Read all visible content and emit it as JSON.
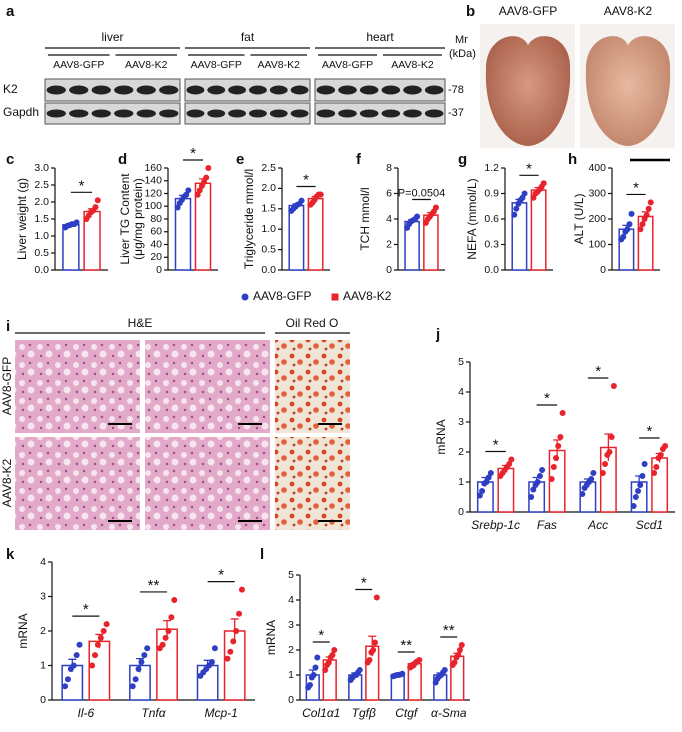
{
  "blot": {
    "panel": "a",
    "tissues": [
      "liver",
      "fat",
      "heart"
    ],
    "groups": [
      "AAV8-GFP",
      "AAV8-K2"
    ],
    "proteins": [
      "K2",
      "Gapdh"
    ],
    "marker_header": [
      "Mr",
      "(kDa)"
    ],
    "markers": [
      "-78",
      "-37"
    ]
  },
  "photos": {
    "panel": "b",
    "labels": [
      "AAV8-GFP",
      "AAV8-K2"
    ]
  },
  "histology": {
    "panel": "i",
    "stains": [
      "H&E",
      "Oil Red O"
    ],
    "rows": [
      "AAV8-GFP",
      "AAV8-K2"
    ]
  },
  "legend": {
    "series": [
      {
        "name": "AAV8-GFP",
        "color": "#2e3fc4",
        "marker": "circle"
      },
      {
        "name": "AAV8-K2",
        "color": "#e8232b",
        "marker": "square"
      }
    ]
  },
  "chart_data": [
    {
      "type": "bar",
      "panel": "c",
      "ylabel": "Liver weight (g)",
      "ylim": [
        0,
        3
      ],
      "yticks": [
        {
          "value": 0,
          "label": "0.0"
        },
        {
          "value": 0.5,
          "label": "0.5"
        },
        {
          "value": 1,
          "label": "1.0"
        },
        {
          "value": 1.5,
          "label": "1.5"
        },
        {
          "value": 2,
          "label": "2.0"
        },
        {
          "value": 2.5,
          "label": "2.5"
        },
        {
          "value": 3,
          "label": "3.0"
        }
      ],
      "significance": [
        "*"
      ],
      "series": [
        {
          "values": [
            1.33
          ],
          "errors": [
            0.03
          ],
          "points": [
            [
              1.25,
              1.3,
              1.32,
              1.35,
              1.35,
              1.4
            ]
          ]
        },
        {
          "values": [
            1.72
          ],
          "errors": [
            0.08
          ],
          "points": [
            [
              1.5,
              1.6,
              1.7,
              1.75,
              1.85,
              2.05
            ]
          ]
        }
      ]
    },
    {
      "type": "bar",
      "panel": "d",
      "ylabel": [
        "Liver TG Content",
        "(μg/mg protein)"
      ],
      "ylim": [
        0,
        160
      ],
      "yticks": [
        0,
        20,
        40,
        60,
        80,
        100,
        120,
        140,
        160
      ],
      "significance": [
        "*"
      ],
      "series": [
        {
          "values": [
            112
          ],
          "errors": [
            5
          ],
          "points": [
            [
              98,
              105,
              110,
              115,
              118,
              125
            ]
          ]
        },
        {
          "values": [
            136
          ],
          "errors": [
            7
          ],
          "points": [
            [
              118,
              125,
              132,
              138,
              145,
              160
            ]
          ]
        }
      ]
    },
    {
      "type": "bar",
      "panel": "e",
      "ylabel": "Triglyceride mmol/l",
      "ylim": [
        0,
        2.5
      ],
      "yticks": [
        {
          "value": 0,
          "label": "0.0"
        },
        {
          "value": 0.5,
          "label": "0.5"
        },
        {
          "value": 1,
          "label": "1.0"
        },
        {
          "value": 1.5,
          "label": "1.5"
        },
        {
          "value": 2,
          "label": "2.0"
        },
        {
          "value": 2.5,
          "label": "2.5"
        }
      ],
      "significance": [
        "*"
      ],
      "series": [
        {
          "values": [
            1.58
          ],
          "errors": [
            0.04
          ],
          "points": [
            [
              1.45,
              1.5,
              1.55,
              1.6,
              1.62,
              1.7
            ]
          ]
        },
        {
          "values": [
            1.75
          ],
          "errors": [
            0.05
          ],
          "points": [
            [
              1.6,
              1.65,
              1.72,
              1.8,
              1.85,
              1.85
            ]
          ]
        }
      ]
    },
    {
      "type": "bar",
      "panel": "f",
      "ylabel": "TCH mmol/l",
      "ylim": [
        0,
        8
      ],
      "yticks": [
        0,
        2,
        4,
        6,
        8
      ],
      "significance": [
        "P=0.0504"
      ],
      "series": [
        {
          "values": [
            3.8
          ],
          "errors": [
            0.15
          ],
          "points": [
            [
              3.3,
              3.6,
              3.8,
              3.9,
              4.0,
              4.2
            ]
          ]
        },
        {
          "values": [
            4.3
          ],
          "errors": [
            0.2
          ],
          "points": [
            [
              3.7,
              4.0,
              4.2,
              4.4,
              4.6,
              4.9
            ]
          ]
        }
      ]
    },
    {
      "type": "bar",
      "panel": "g",
      "ylabel": "NEFA (mmol/L)",
      "ylim": [
        0,
        1.2
      ],
      "yticks": [
        {
          "value": 0,
          "label": "0.0"
        },
        {
          "value": 0.3,
          "label": "0.3"
        },
        {
          "value": 0.6,
          "label": "0.6"
        },
        {
          "value": 0.9,
          "label": "0.9"
        },
        {
          "value": 1.2,
          "label": "1.2"
        }
      ],
      "significance": [
        "*"
      ],
      "series": [
        {
          "values": [
            0.79
          ],
          "errors": [
            0.04
          ],
          "points": [
            [
              0.65,
              0.72,
              0.78,
              0.82,
              0.85,
              0.9
            ]
          ]
        },
        {
          "values": [
            0.94
          ],
          "errors": [
            0.03
          ],
          "points": [
            [
              0.85,
              0.9,
              0.92,
              0.95,
              0.98,
              1.02
            ]
          ]
        }
      ]
    },
    {
      "type": "bar",
      "panel": "h",
      "ylabel": "ALT (U/L)",
      "ylim": [
        0,
        400
      ],
      "yticks": [
        0,
        100,
        200,
        300,
        400
      ],
      "significance": [
        "*"
      ],
      "series": [
        {
          "values": [
            160
          ],
          "errors": [
            15
          ],
          "points": [
            [
              120,
              130,
              150,
              160,
              180,
              220
            ]
          ]
        },
        {
          "values": [
            210
          ],
          "errors": [
            18
          ],
          "points": [
            [
              160,
              180,
              200,
              215,
              240,
              265
            ]
          ]
        }
      ]
    },
    {
      "type": "bar",
      "panel": "j",
      "ylabel": "mRNA",
      "ylim": [
        0,
        5
      ],
      "yticks": [
        0,
        1,
        2,
        3,
        4,
        5
      ],
      "categories": [
        "Srebp-1c",
        "Fas",
        "Acc",
        "Scd1"
      ],
      "significance": [
        "*",
        "*",
        "*",
        "*"
      ],
      "series": [
        {
          "values": [
            1.0,
            1.0,
            1.0,
            1.0
          ],
          "errors": [
            0.15,
            0.15,
            0.1,
            0.2
          ],
          "points": [
            [
              0.55,
              0.7,
              0.95,
              1.0,
              1.15,
              1.3
            ],
            [
              0.5,
              0.75,
              0.9,
              1.0,
              1.2,
              1.4
            ],
            [
              0.6,
              0.8,
              0.9,
              1.0,
              1.1,
              1.3
            ],
            [
              0.2,
              0.5,
              0.7,
              0.9,
              1.2,
              1.6
            ]
          ]
        },
        {
          "values": [
            1.45,
            2.05,
            2.15,
            1.8
          ],
          "errors": [
            0.1,
            0.35,
            0.45,
            0.15
          ],
          "points": [
            [
              1.2,
              1.3,
              1.4,
              1.5,
              1.6,
              1.75
            ],
            [
              1.1,
              1.5,
              1.8,
              2.2,
              2.5,
              3.3
            ],
            [
              1.3,
              1.6,
              1.9,
              2.0,
              2.5,
              4.2
            ],
            [
              1.3,
              1.5,
              1.8,
              1.9,
              2.1,
              2.2
            ]
          ]
        }
      ]
    },
    {
      "type": "bar",
      "panel": "k",
      "ylabel": "mRNA",
      "ylim": [
        0,
        4
      ],
      "yticks": [
        0,
        1,
        2,
        3,
        4
      ],
      "categories": [
        "Il-6",
        "Tnfα",
        "Mcp-1"
      ],
      "significance": [
        "*",
        "**",
        "*"
      ],
      "series": [
        {
          "values": [
            1.0,
            1.0,
            1.0
          ],
          "errors": [
            0.18,
            0.2,
            0.15
          ],
          "points": [
            [
              0.4,
              0.6,
              0.9,
              1.0,
              1.3,
              1.6
            ],
            [
              0.4,
              0.6,
              0.9,
              1.1,
              1.3,
              1.5
            ],
            [
              0.7,
              0.8,
              0.9,
              1.0,
              1.1,
              1.5
            ]
          ]
        },
        {
          "values": [
            1.7,
            2.05,
            2.0
          ],
          "errors": [
            0.2,
            0.25,
            0.35
          ],
          "points": [
            [
              1.0,
              1.3,
              1.6,
              1.8,
              2.0,
              2.2
            ],
            [
              1.5,
              1.6,
              1.8,
              2.0,
              2.4,
              2.9
            ],
            [
              1.2,
              1.4,
              1.7,
              2.0,
              2.5,
              3.2
            ]
          ]
        }
      ]
    },
    {
      "type": "bar",
      "panel": "l",
      "ylabel": "mRNA",
      "ylim": [
        0,
        5
      ],
      "yticks": [
        0,
        1,
        2,
        3,
        4,
        5
      ],
      "categories": [
        "Col1α1",
        "Tgfβ",
        "Ctgf",
        "α-Sma"
      ],
      "significance": [
        "*",
        "*",
        "**",
        "**"
      ],
      "series": [
        {
          "values": [
            1.0,
            1.0,
            1.0,
            1.0
          ],
          "errors": [
            0.2,
            0.08,
            0.02,
            0.08
          ],
          "points": [
            [
              0.5,
              0.6,
              0.9,
              1.0,
              1.3,
              1.7
            ],
            [
              0.8,
              0.9,
              1.0,
              1.0,
              1.1,
              1.2
            ],
            [
              0.95,
              0.97,
              1.0,
              1.0,
              1.02,
              1.05
            ],
            [
              0.7,
              0.85,
              0.95,
              1.0,
              1.1,
              1.2
            ]
          ]
        },
        {
          "values": [
            1.6,
            2.15,
            1.45,
            1.75
          ],
          "errors": [
            0.12,
            0.4,
            0.05,
            0.12
          ],
          "points": [
            [
              1.2,
              1.4,
              1.5,
              1.7,
              1.8,
              2.0
            ],
            [
              1.5,
              1.6,
              1.9,
              2.0,
              2.3,
              4.1
            ],
            [
              1.3,
              1.35,
              1.4,
              1.5,
              1.55,
              1.6
            ],
            [
              1.4,
              1.5,
              1.7,
              1.8,
              2.0,
              2.2
            ]
          ]
        }
      ]
    }
  ]
}
